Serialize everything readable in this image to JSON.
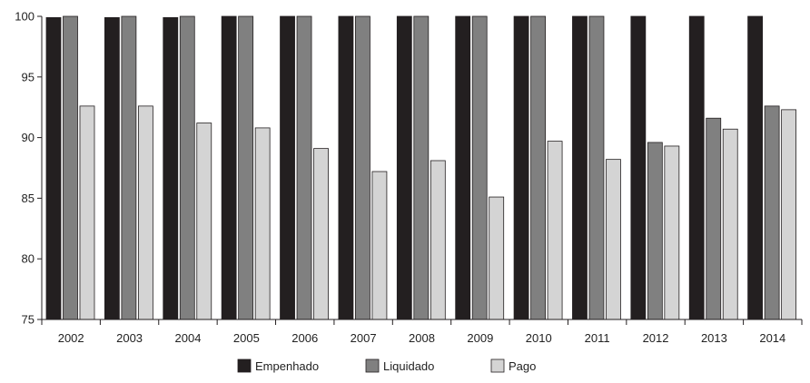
{
  "chart_data": {
    "type": "bar",
    "title": "",
    "xlabel": "",
    "ylabel": "",
    "categories": [
      "2002",
      "2003",
      "2004",
      "2005",
      "2006",
      "2007",
      "2008",
      "2009",
      "2010",
      "2011",
      "2012",
      "2013",
      "2014"
    ],
    "series": [
      {
        "name": "Empenhado",
        "color": "#231f20",
        "values": [
          99.9,
          99.9,
          99.9,
          100,
          100,
          100,
          100,
          100,
          100,
          100,
          100,
          100,
          100
        ]
      },
      {
        "name": "Liquidado",
        "color": "#808080",
        "values": [
          100,
          100,
          100,
          100,
          100,
          100,
          100,
          100,
          100,
          100,
          89.6,
          91.6,
          92.6
        ]
      },
      {
        "name": "Pago",
        "color": "#d4d4d4",
        "values": [
          92.6,
          92.6,
          91.2,
          90.8,
          89.1,
          87.2,
          88.1,
          85.1,
          89.7,
          88.2,
          89.3,
          90.7,
          92.3
        ]
      }
    ],
    "ylim": [
      75,
      100
    ],
    "yticks": [
      75,
      80,
      85,
      90,
      95,
      100
    ],
    "grid": false,
    "legend_position": "bottom-center"
  }
}
